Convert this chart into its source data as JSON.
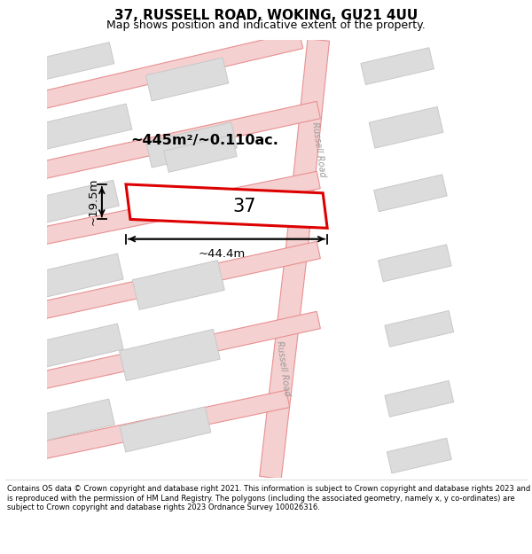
{
  "title": "37, RUSSELL ROAD, WOKING, GU21 4UU",
  "subtitle": "Map shows position and indicative extent of the property.",
  "footer": "Contains OS data © Crown copyright and database right 2021. This information is subject to Crown copyright and database rights 2023 and is reproduced with the permission of HM Land Registry. The polygons (including the associated geometry, namely x, y co-ordinates) are subject to Crown copyright and database rights 2023 Ordnance Survey 100026316.",
  "map_bg": "#faf7f7",
  "road_fill": "#f5d0d0",
  "road_edge": "#e89090",
  "building_fill": "#dcdcdc",
  "building_edge": "#c8c8c8",
  "plot_color": "#dd0000",
  "plot_fill": "#ffffff",
  "area_text": "~445m²/~0.110ac.",
  "width_text": "~44.4m",
  "height_text": "~19.5m",
  "number_text": "37",
  "road_label_upper": "Russell Road",
  "road_label_lower": "Russell Road",
  "title_fontsize": 11,
  "subtitle_fontsize": 9,
  "footer_fontsize": 6.0
}
